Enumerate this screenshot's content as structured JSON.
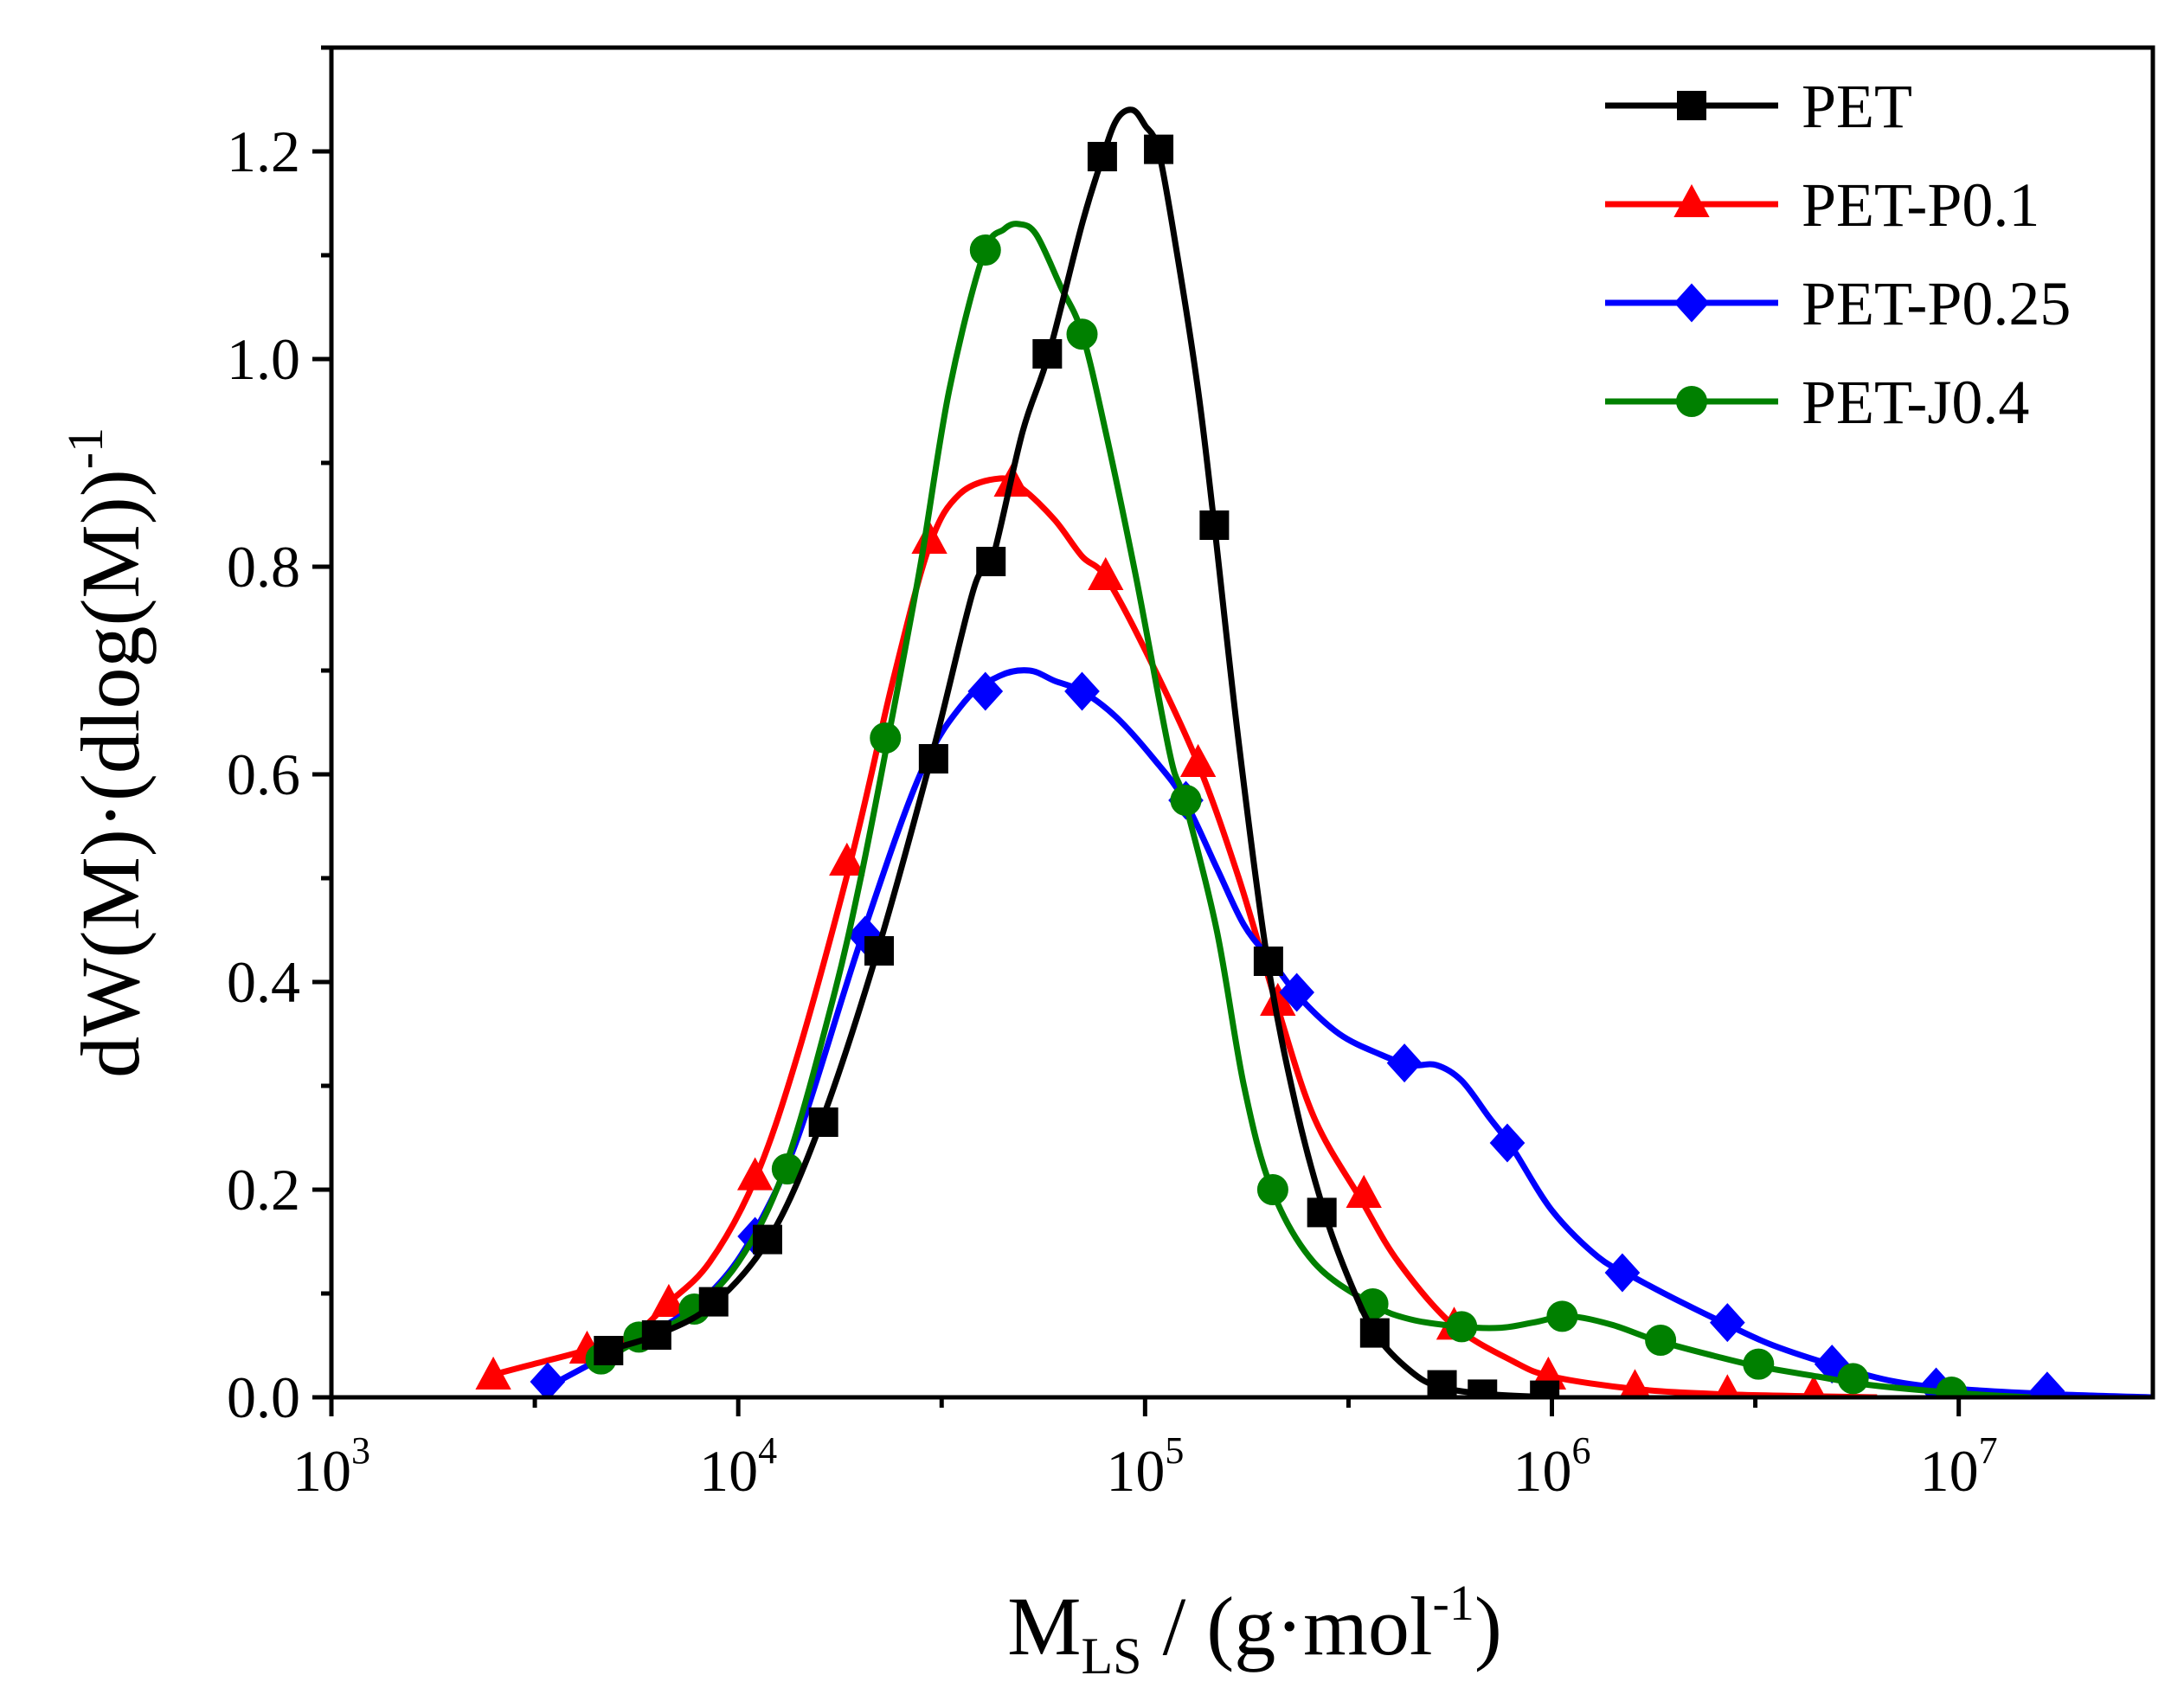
{
  "chart_data": {
    "type": "line",
    "xscale": "log",
    "xlim": [
      1000,
      30000000
    ],
    "ylim": [
      0.0,
      1.3
    ],
    "xlabel": {
      "main": "M",
      "sub": "LS",
      "rest": " / (g·mol",
      "sup": "-1",
      "end": ")"
    },
    "ylabel": {
      "main": "dW(M)·(dlog(M))",
      "sup": "-1"
    },
    "x_ticks": [
      {
        "value": 1000,
        "base": "10",
        "exp": "3"
      },
      {
        "value": 10000,
        "base": "10",
        "exp": "4"
      },
      {
        "value": 100000,
        "base": "10",
        "exp": "5"
      },
      {
        "value": 1000000,
        "base": "10",
        "exp": "6"
      },
      {
        "value": 10000000,
        "base": "10",
        "exp": "7"
      }
    ],
    "y_ticks": [
      "0.0",
      "0.2",
      "0.4",
      "0.6",
      "0.8",
      "1.0",
      "1.2"
    ],
    "legend_position": "top-right",
    "series": [
      {
        "name": "PET",
        "color": "#000000",
        "marker": "square",
        "curve": [
          [
            4700,
            0.045
          ],
          [
            6300,
            0.06
          ],
          [
            8700,
            0.09
          ],
          [
            12000,
            0.155
          ],
          [
            16000,
            0.265
          ],
          [
            22000,
            0.43
          ],
          [
            30000,
            0.62
          ],
          [
            38000,
            0.78
          ],
          [
            42000,
            0.805
          ],
          [
            50000,
            0.93
          ],
          [
            58000,
            1.005
          ],
          [
            70000,
            1.13
          ],
          [
            78000,
            1.19
          ],
          [
            85000,
            1.23
          ],
          [
            93000,
            1.24
          ],
          [
            100000,
            1.225
          ],
          [
            108000,
            1.2
          ],
          [
            120000,
            1.1
          ],
          [
            135000,
            0.97
          ],
          [
            148000,
            0.84
          ],
          [
            170000,
            0.63
          ],
          [
            200000,
            0.42
          ],
          [
            235000,
            0.28
          ],
          [
            275000,
            0.18
          ],
          [
            320000,
            0.11
          ],
          [
            370000,
            0.06
          ],
          [
            450000,
            0.025
          ],
          [
            530000,
            0.01
          ],
          [
            700000,
            0.003
          ],
          [
            1000000,
            0.0
          ]
        ],
        "markers": [
          [
            4800,
            0.045
          ],
          [
            6300,
            0.06
          ],
          [
            8700,
            0.092
          ],
          [
            11800,
            0.152
          ],
          [
            16200,
            0.265
          ],
          [
            22200,
            0.43
          ],
          [
            30200,
            0.615
          ],
          [
            41800,
            0.805
          ],
          [
            57500,
            1.005
          ],
          [
            78500,
            1.195
          ],
          [
            108000,
            1.202
          ],
          [
            148000,
            0.84
          ],
          [
            201000,
            0.42
          ],
          [
            272000,
            0.178
          ],
          [
            367000,
            0.062
          ],
          [
            537000,
            0.012
          ],
          [
            675000,
            0.003
          ],
          [
            960000,
            0.002
          ]
        ]
      },
      {
        "name": "PET-P0.1",
        "color": "#ff0000",
        "marker": "triangle",
        "curve": [
          [
            2400,
            0.02
          ],
          [
            3000,
            0.03
          ],
          [
            4200,
            0.045
          ],
          [
            5500,
            0.06
          ],
          [
            6700,
            0.09
          ],
          [
            8500,
            0.13
          ],
          [
            11000,
            0.21
          ],
          [
            14000,
            0.33
          ],
          [
            19000,
            0.52
          ],
          [
            24000,
            0.69
          ],
          [
            29500,
            0.82
          ],
          [
            35000,
            0.87
          ],
          [
            44000,
            0.885
          ],
          [
            50000,
            0.875
          ],
          [
            60000,
            0.845
          ],
          [
            70000,
            0.81
          ],
          [
            80000,
            0.79
          ],
          [
            100000,
            0.72
          ],
          [
            135000,
            0.61
          ],
          [
            170000,
            0.5
          ],
          [
            210000,
            0.38
          ],
          [
            260000,
            0.27
          ],
          [
            340000,
            0.19
          ],
          [
            420000,
            0.13
          ],
          [
            570000,
            0.07
          ],
          [
            800000,
            0.035
          ],
          [
            1000000,
            0.02
          ],
          [
            1600000,
            0.008
          ],
          [
            2600000,
            0.003
          ],
          [
            4400000,
            0.001
          ],
          [
            6300000,
            0.0
          ]
        ],
        "markers": [
          [
            2500,
            0.02
          ],
          [
            4250,
            0.045
          ],
          [
            6750,
            0.09
          ],
          [
            11000,
            0.212
          ],
          [
            18500,
            0.515
          ],
          [
            29500,
            0.825
          ],
          [
            47000,
            0.88
          ],
          [
            80000,
            0.79
          ],
          [
            135000,
            0.61
          ],
          [
            212000,
            0.38
          ],
          [
            345000,
            0.195
          ],
          [
            575000,
            0.068
          ],
          [
            980000,
            0.02
          ],
          [
            1600000,
            0.008
          ],
          [
            2700000,
            0.003
          ],
          [
            4400000,
            0.002
          ]
        ]
      },
      {
        "name": "PET-P0.25",
        "color": "#0000ff",
        "marker": "diamond",
        "curve": [
          [
            3400,
            0.01
          ],
          [
            5000,
            0.045
          ],
          [
            7000,
            0.075
          ],
          [
            9000,
            0.11
          ],
          [
            11000,
            0.16
          ],
          [
            14000,
            0.25
          ],
          [
            20000,
            0.44
          ],
          [
            28000,
            0.6
          ],
          [
            36000,
            0.67
          ],
          [
            44000,
            0.695
          ],
          [
            52000,
            0.7
          ],
          [
            60000,
            0.69
          ],
          [
            70000,
            0.68
          ],
          [
            85000,
            0.655
          ],
          [
            105000,
            0.615
          ],
          [
            125000,
            0.575
          ],
          [
            150000,
            0.51
          ],
          [
            175000,
            0.455
          ],
          [
            205000,
            0.42
          ],
          [
            240000,
            0.385
          ],
          [
            300000,
            0.35
          ],
          [
            380000,
            0.33
          ],
          [
            450000,
            0.32
          ],
          [
            520000,
            0.32
          ],
          [
            600000,
            0.305
          ],
          [
            700000,
            0.27
          ],
          [
            800000,
            0.24
          ],
          [
            1000000,
            0.18
          ],
          [
            1300000,
            0.135
          ],
          [
            1600000,
            0.115
          ],
          [
            2000000,
            0.095
          ],
          [
            2700000,
            0.07
          ],
          [
            3500000,
            0.05
          ],
          [
            5000000,
            0.03
          ],
          [
            7000000,
            0.015
          ],
          [
            10000000,
            0.008
          ],
          [
            17000000,
            0.003
          ],
          [
            30000000,
            0.0
          ]
        ],
        "markers": [
          [
            3400,
            0.015
          ],
          [
            11000,
            0.155
          ],
          [
            20500,
            0.445
          ],
          [
            40500,
            0.68
          ],
          [
            70000,
            0.68
          ],
          [
            126000,
            0.575
          ],
          [
            236000,
            0.39
          ],
          [
            434000,
            0.322
          ],
          [
            777000,
            0.245
          ],
          [
            1490000,
            0.12
          ],
          [
            2700000,
            0.072
          ],
          [
            4880000,
            0.032
          ],
          [
            8800000,
            0.01
          ],
          [
            16500000,
            0.006
          ]
        ]
      },
      {
        "name": "PET-J0.4",
        "color": "#008000",
        "marker": "circle",
        "curve": [
          [
            4600,
            0.035
          ],
          [
            5700,
            0.055
          ],
          [
            7500,
            0.08
          ],
          [
            10000,
            0.13
          ],
          [
            13000,
            0.22
          ],
          [
            17000,
            0.38
          ],
          [
            20000,
            0.5
          ],
          [
            23500,
            0.64
          ],
          [
            28000,
            0.8
          ],
          [
            33000,
            0.97
          ],
          [
            40000,
            1.1
          ],
          [
            45000,
            1.125
          ],
          [
            49000,
            1.13
          ],
          [
            54000,
            1.12
          ],
          [
            62000,
            1.07
          ],
          [
            70000,
            1.025
          ],
          [
            80000,
            0.93
          ],
          [
            95000,
            0.79
          ],
          [
            115000,
            0.62
          ],
          [
            125000,
            0.575
          ],
          [
            150000,
            0.45
          ],
          [
            175000,
            0.3
          ],
          [
            205000,
            0.2
          ],
          [
            260000,
            0.13
          ],
          [
            360000,
            0.09
          ],
          [
            450000,
            0.075
          ],
          [
            600000,
            0.068
          ],
          [
            750000,
            0.067
          ],
          [
            900000,
            0.072
          ],
          [
            1100000,
            0.078
          ],
          [
            1400000,
            0.07
          ],
          [
            1800000,
            0.055
          ],
          [
            2500000,
            0.04
          ],
          [
            3200000,
            0.03
          ],
          [
            4500000,
            0.02
          ],
          [
            6000000,
            0.012
          ],
          [
            10000000,
            0.004
          ],
          [
            15000000,
            0.0
          ]
        ],
        "markers": [
          [
            4600,
            0.037
          ],
          [
            5700,
            0.058
          ],
          [
            7800,
            0.085
          ],
          [
            13200,
            0.22
          ],
          [
            23000,
            0.635
          ],
          [
            40500,
            1.105
          ],
          [
            70000,
            1.024
          ],
          [
            126000,
            0.575
          ],
          [
            206000,
            0.2
          ],
          [
            363000,
            0.09
          ],
          [
            600000,
            0.068
          ],
          [
            1060000,
            0.078
          ],
          [
            1850000,
            0.055
          ],
          [
            3220000,
            0.032
          ],
          [
            5500000,
            0.018
          ],
          [
            9600000,
            0.005
          ]
        ]
      }
    ]
  }
}
